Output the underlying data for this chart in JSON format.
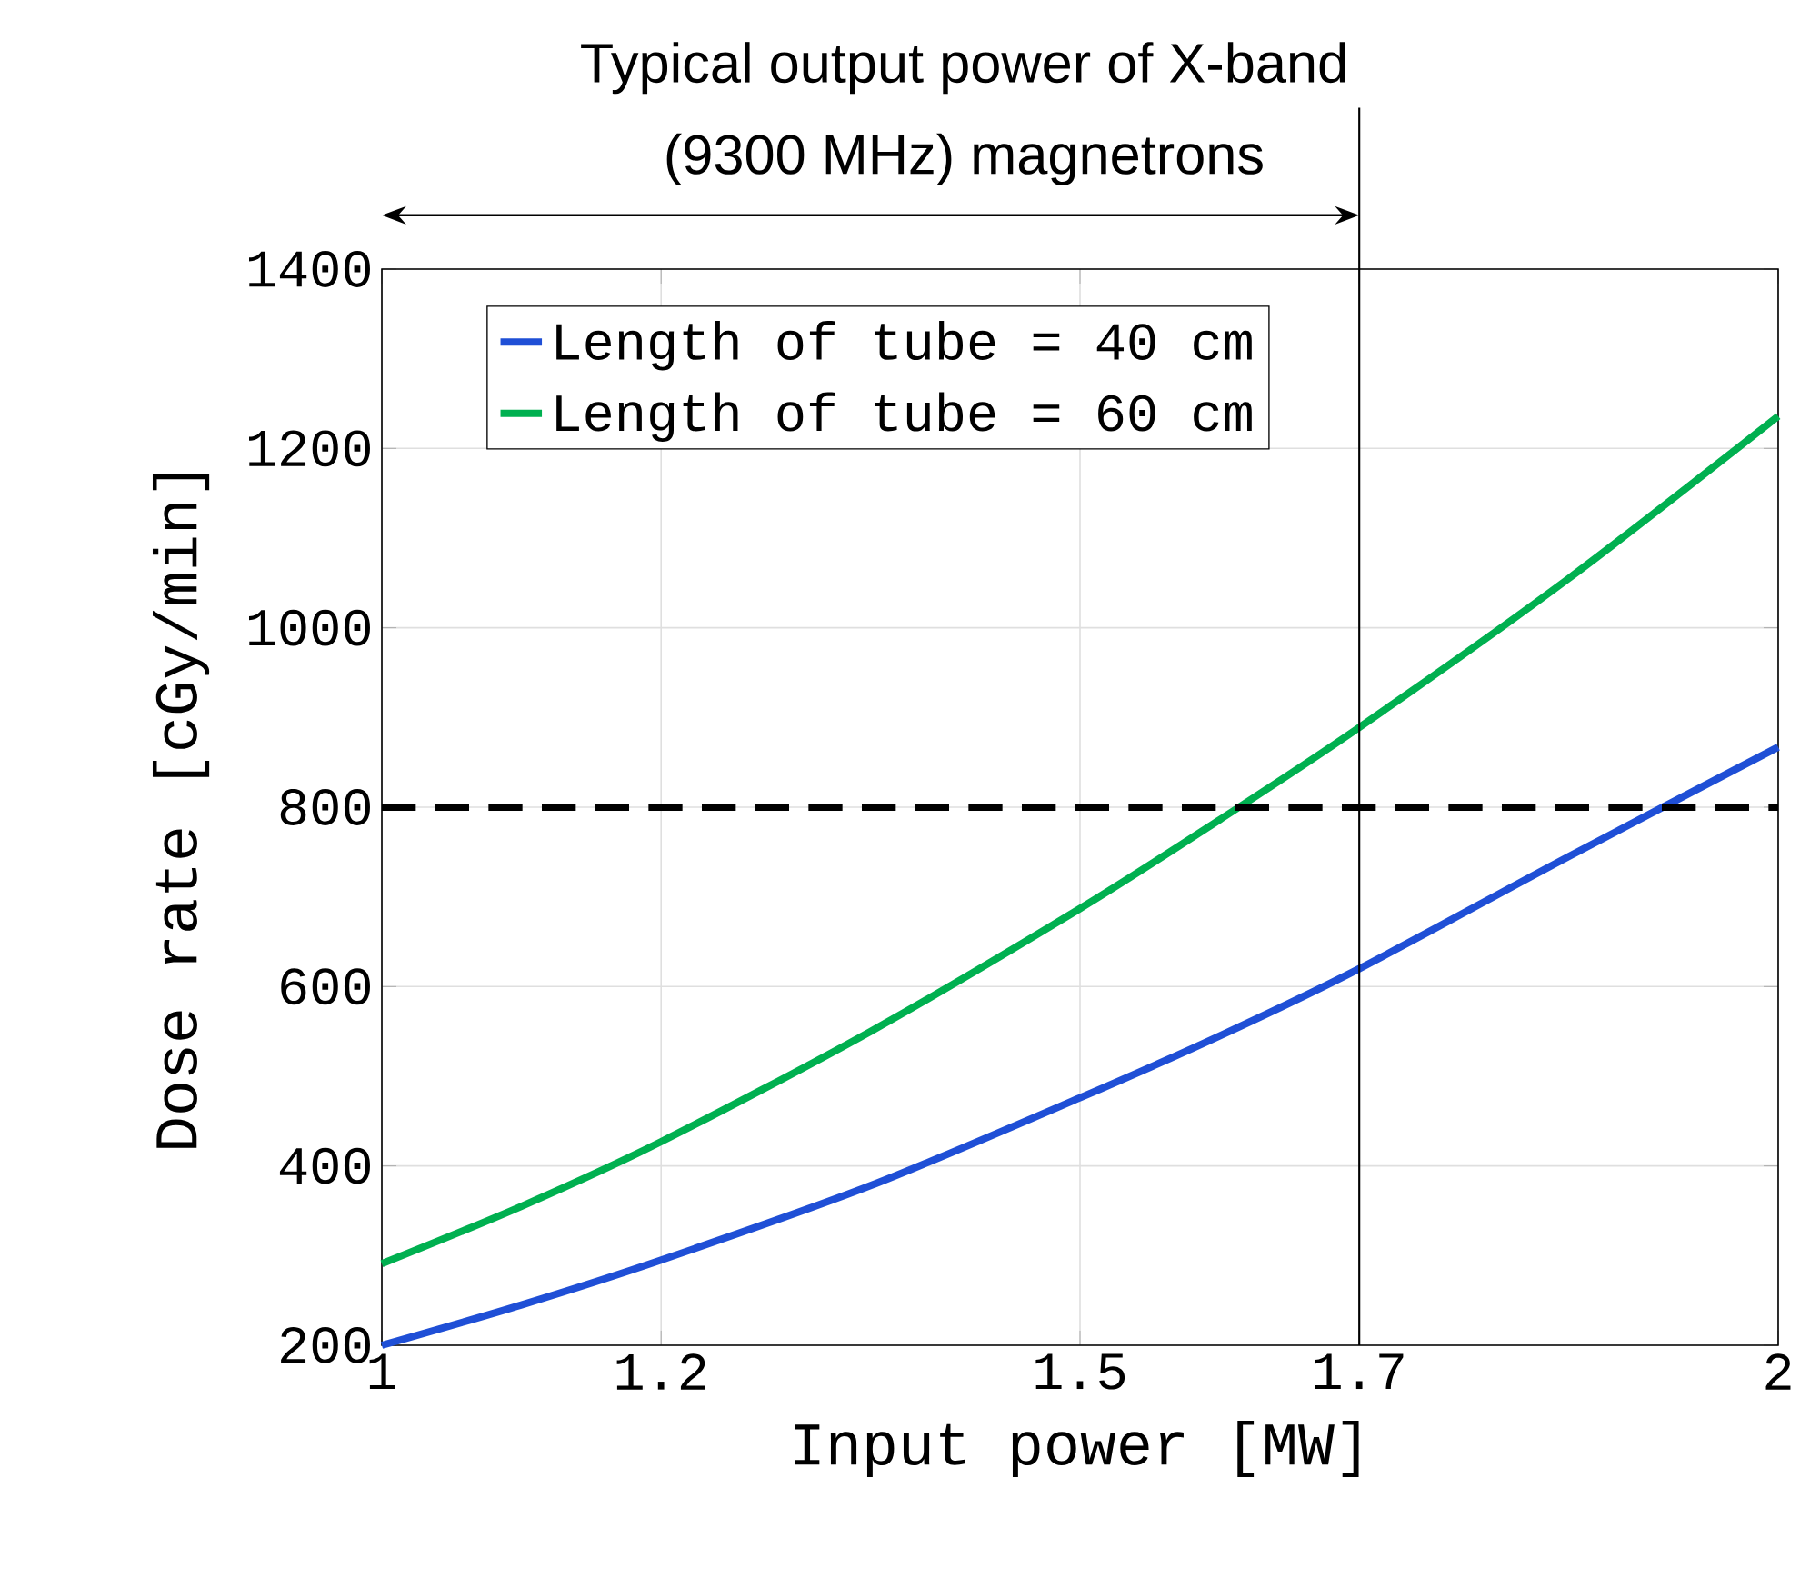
{
  "chart_data": {
    "type": "line",
    "x": [
      1,
      1.1,
      1.2,
      1.35,
      1.5,
      1.6,
      1.7,
      1.85,
      2
    ],
    "series": [
      {
        "name": "Length of tube = 40 cm",
        "color": "#1f4fd6",
        "values": [
          200,
          245,
          295,
          378,
          476,
          545,
          620,
          745,
          867
        ]
      },
      {
        "name": "Length of tube = 60 cm",
        "color": "#00b050",
        "values": [
          291,
          355,
          427,
          550,
          687,
          786,
          889,
          1055,
          1236
        ]
      }
    ],
    "xlabel": "Input power [MW]",
    "ylabel": "Dose rate [cGy/min]",
    "xlim": [
      1,
      2
    ],
    "xticks": [
      1,
      1.2,
      1.5,
      1.7,
      2
    ],
    "ylim": [
      200,
      1400
    ],
    "yticks": [
      200,
      400,
      600,
      800,
      1000,
      1200,
      1400
    ],
    "grid": true,
    "legend": "top left",
    "marker": "none",
    "line_style": "solid",
    "ref_lines": [
      {
        "axis": "y",
        "value": 800,
        "color": "#000000",
        "line_style": "dashed"
      },
      {
        "axis": "x",
        "value": 1.7,
        "color": "#000000",
        "line_style": "solid"
      }
    ],
    "annotations": [
      "Typical output power of X-band",
      "(9300 MHz) magnetrons"
    ]
  }
}
